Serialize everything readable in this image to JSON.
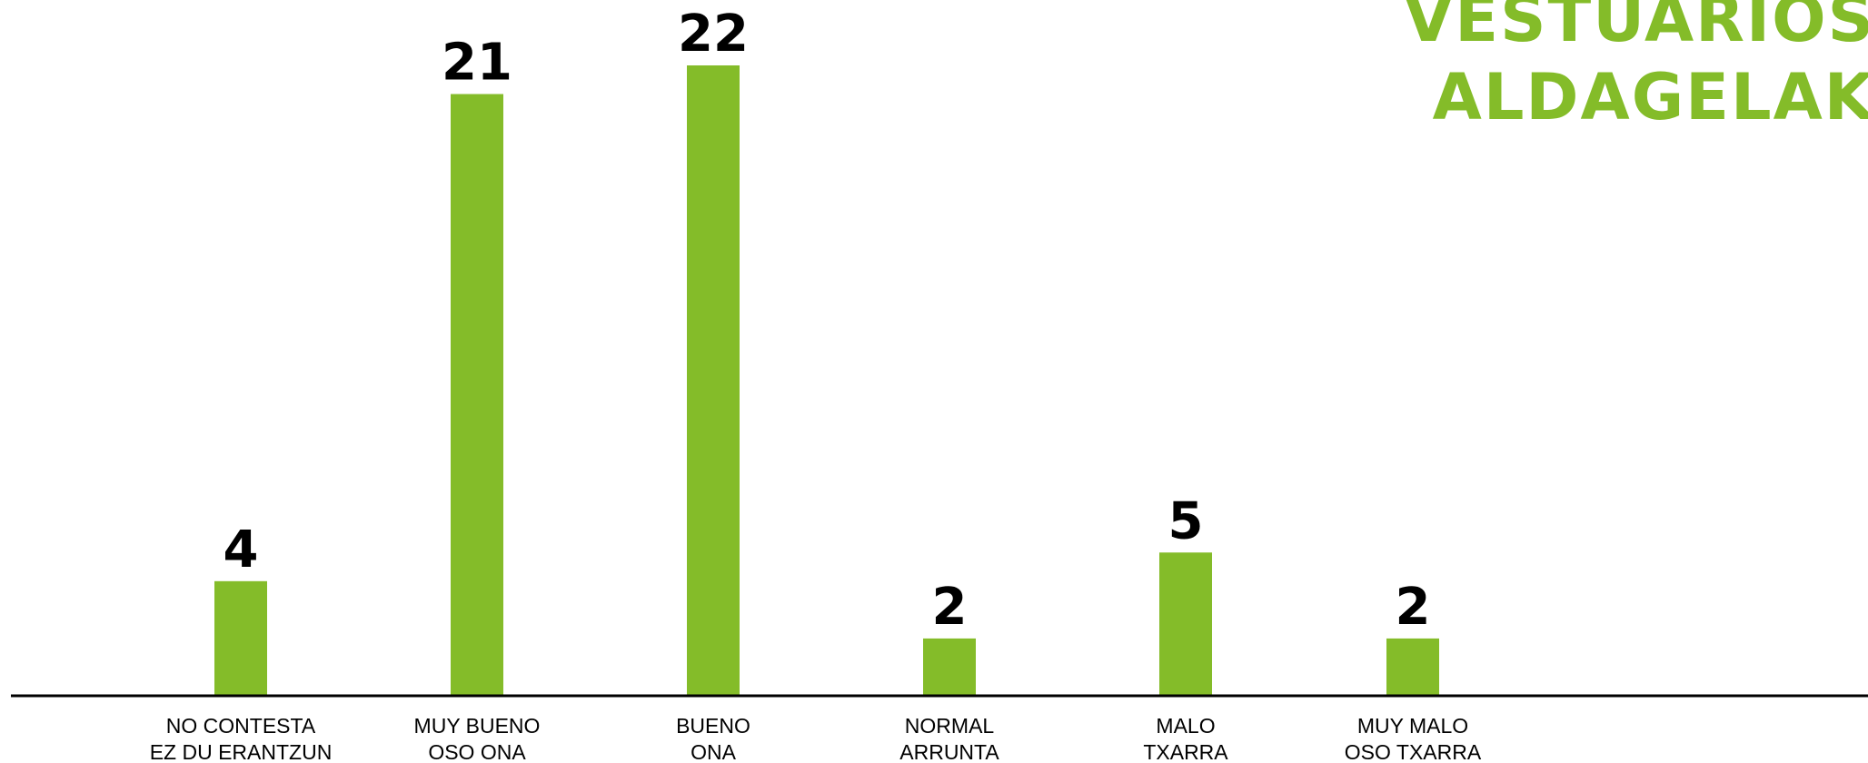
{
  "chart_data": {
    "type": "bar",
    "title_lines": [
      "VESTUARIOS",
      "ALDAGELAK"
    ],
    "categories": [
      [
        "NO CONTESTA",
        "EZ DU ERANTZUN"
      ],
      [
        "MUY BUENO",
        "OSO ONA"
      ],
      [
        "BUENO",
        "ONA"
      ],
      [
        "NORMAL",
        "ARRUNTA"
      ],
      [
        "MALO",
        "TXARRA"
      ],
      [
        "MUY MALO",
        "OSO TXARRA"
      ]
    ],
    "values": [
      4,
      21,
      22,
      2,
      5,
      2
    ],
    "ylim": [
      0,
      22
    ],
    "grid": false,
    "legend": "none",
    "bar_color": "#84bc29",
    "axis_color": "#000000",
    "label_color": "#000000"
  }
}
